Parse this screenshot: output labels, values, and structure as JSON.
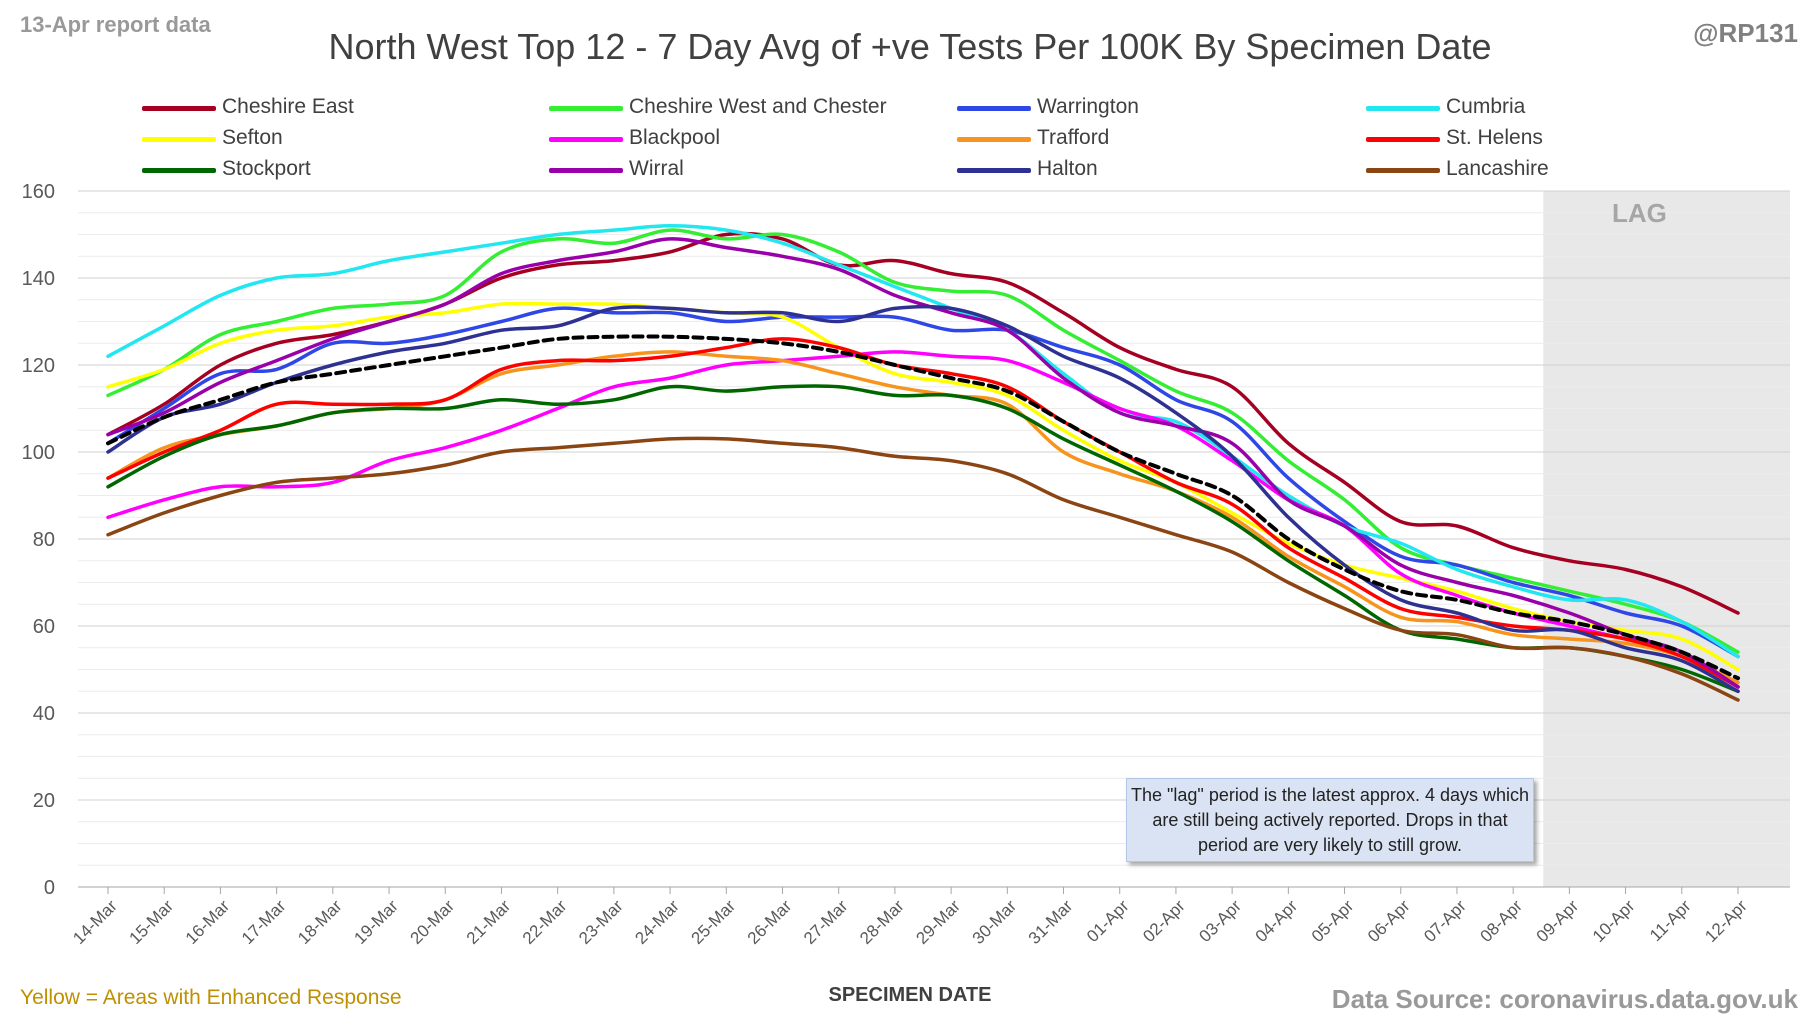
{
  "header": {
    "report_label": "13-Apr report data",
    "handle": "@RP131"
  },
  "chart_data": {
    "type": "line",
    "title": "North West Top 12 - 7 Day Avg of +ve Tests Per 100K By Specimen Date",
    "xlabel": "SPECIMEN DATE",
    "ylabel": "",
    "ylim": [
      0,
      160
    ],
    "yticks": [
      0,
      20,
      40,
      60,
      80,
      100,
      120,
      140,
      160
    ],
    "grid": true,
    "legend_position": "top",
    "categories": [
      "14-Mar",
      "15-Mar",
      "16-Mar",
      "17-Mar",
      "18-Mar",
      "19-Mar",
      "20-Mar",
      "21-Mar",
      "22-Mar",
      "23-Mar",
      "24-Mar",
      "25-Mar",
      "26-Mar",
      "27-Mar",
      "28-Mar",
      "29-Mar",
      "30-Mar",
      "31-Mar",
      "01-Apr",
      "02-Apr",
      "03-Apr",
      "04-Apr",
      "05-Apr",
      "06-Apr",
      "07-Apr",
      "08-Apr",
      "09-Apr",
      "10-Apr",
      "11-Apr",
      "12-Apr"
    ],
    "series": [
      {
        "name": "Cheshire East",
        "color": "#a50021",
        "values": [
          104,
          111,
          120,
          125,
          127,
          130,
          134,
          140,
          143,
          144,
          146,
          150,
          149,
          143,
          144,
          141,
          139,
          132,
          124,
          119,
          115,
          102,
          93,
          84,
          83,
          78,
          75,
          73,
          69,
          63
        ]
      },
      {
        "name": "Cheshire West and Chester",
        "color": "#33ee33",
        "values": [
          113,
          119,
          127,
          130,
          133,
          134,
          136,
          146,
          149,
          148,
          151,
          149,
          150,
          146,
          139,
          137,
          136,
          128,
          121,
          114,
          109,
          98,
          89,
          78,
          74,
          71,
          68,
          65,
          61,
          54
        ]
      },
      {
        "name": "Warrington",
        "color": "#2e47e6",
        "values": [
          102,
          110,
          118,
          119,
          125,
          125,
          127,
          130,
          133,
          132,
          132,
          130,
          131,
          131,
          131,
          128,
          128,
          124,
          120,
          112,
          107,
          94,
          84,
          76,
          74,
          70,
          67,
          63,
          60,
          53
        ]
      },
      {
        "name": "Cumbria",
        "color": "#22e6f0",
        "values": [
          122,
          129,
          136,
          140,
          141,
          144,
          146,
          148,
          150,
          151,
          152,
          151,
          148,
          143,
          138,
          133,
          128,
          118,
          109,
          107,
          99,
          90,
          83,
          79,
          73,
          69,
          66,
          66,
          61,
          53
        ]
      },
      {
        "name": "Sefton",
        "color": "#ffff00",
        "values": [
          115,
          119,
          125,
          128,
          129,
          131,
          132,
          134,
          134,
          134,
          133,
          132,
          131,
          124,
          118,
          116,
          113,
          105,
          98,
          93,
          86,
          79,
          74,
          71,
          68,
          64,
          61,
          59,
          57,
          50
        ]
      },
      {
        "name": "Blackpool",
        "color": "#ff00ff",
        "values": [
          85,
          89,
          92,
          92,
          93,
          98,
          101,
          105,
          110,
          115,
          117,
          120,
          121,
          122,
          123,
          122,
          121,
          116,
          110,
          106,
          98,
          89,
          83,
          72,
          67,
          63,
          60,
          57,
          54,
          46
        ]
      },
      {
        "name": "Trafford",
        "color": "#f7941d",
        "values": [
          94,
          101,
          104,
          106,
          109,
          110,
          112,
          118,
          120,
          122,
          123,
          122,
          121,
          118,
          115,
          113,
          111,
          100,
          95,
          91,
          85,
          76,
          69,
          62,
          61,
          58,
          57,
          56,
          53,
          47
        ]
      },
      {
        "name": "St. Helens",
        "color": "#ff0000",
        "values": [
          94,
          100,
          105,
          111,
          111,
          111,
          112,
          119,
          121,
          121,
          122,
          124,
          126,
          124,
          120,
          118,
          115,
          107,
          100,
          93,
          88,
          78,
          71,
          64,
          62,
          60,
          59,
          57,
          53,
          46
        ]
      },
      {
        "name": "Stockport",
        "color": "#006600",
        "values": [
          92,
          99,
          104,
          106,
          109,
          110,
          110,
          112,
          111,
          112,
          115,
          114,
          115,
          115,
          113,
          113,
          110,
          103,
          97,
          91,
          84,
          75,
          67,
          59,
          57,
          55,
          55,
          53,
          50,
          45
        ]
      },
      {
        "name": "Wirral",
        "color": "#9900aa",
        "values": [
          104,
          109,
          116,
          121,
          126,
          130,
          134,
          141,
          144,
          146,
          149,
          147,
          145,
          142,
          136,
          132,
          128,
          117,
          109,
          106,
          102,
          89,
          83,
          74,
          70,
          67,
          63,
          58,
          54,
          46
        ]
      },
      {
        "name": "Halton",
        "color": "#2e3192",
        "values": [
          100,
          108,
          111,
          116,
          120,
          123,
          125,
          128,
          129,
          133,
          133,
          132,
          132,
          130,
          133,
          133,
          129,
          122,
          117,
          109,
          99,
          85,
          74,
          66,
          63,
          59,
          59,
          55,
          52,
          45
        ]
      },
      {
        "name": "Lancashire",
        "color": "#8b4513",
        "values": [
          81,
          86,
          90,
          93,
          94,
          95,
          97,
          100,
          101,
          102,
          103,
          103,
          102,
          101,
          99,
          98,
          95,
          89,
          85,
          81,
          77,
          70,
          64,
          59,
          58,
          55,
          55,
          53,
          49,
          43
        ]
      },
      {
        "name": "",
        "color": "#000000",
        "dashed": true,
        "values": [
          102,
          108,
          112,
          116,
          118,
          120,
          122,
          124,
          126,
          126.5,
          126.5,
          126,
          125,
          123,
          120,
          117,
          114,
          107,
          100,
          95,
          90,
          80,
          73,
          68,
          66,
          63,
          61,
          58,
          54,
          48
        ]
      }
    ],
    "lag_region": {
      "label": "LAG",
      "from": "09-Apr",
      "to": "12-Apr"
    },
    "annotations": [
      "The \"lag\" period is the latest approx. 4 days which are still being actively reported. Drops in that period are very likely to still grow."
    ]
  },
  "footer": {
    "note": "Yellow = Areas with Enhanced Response",
    "source": "Data Source: coronavirus.data.gov.uk"
  }
}
